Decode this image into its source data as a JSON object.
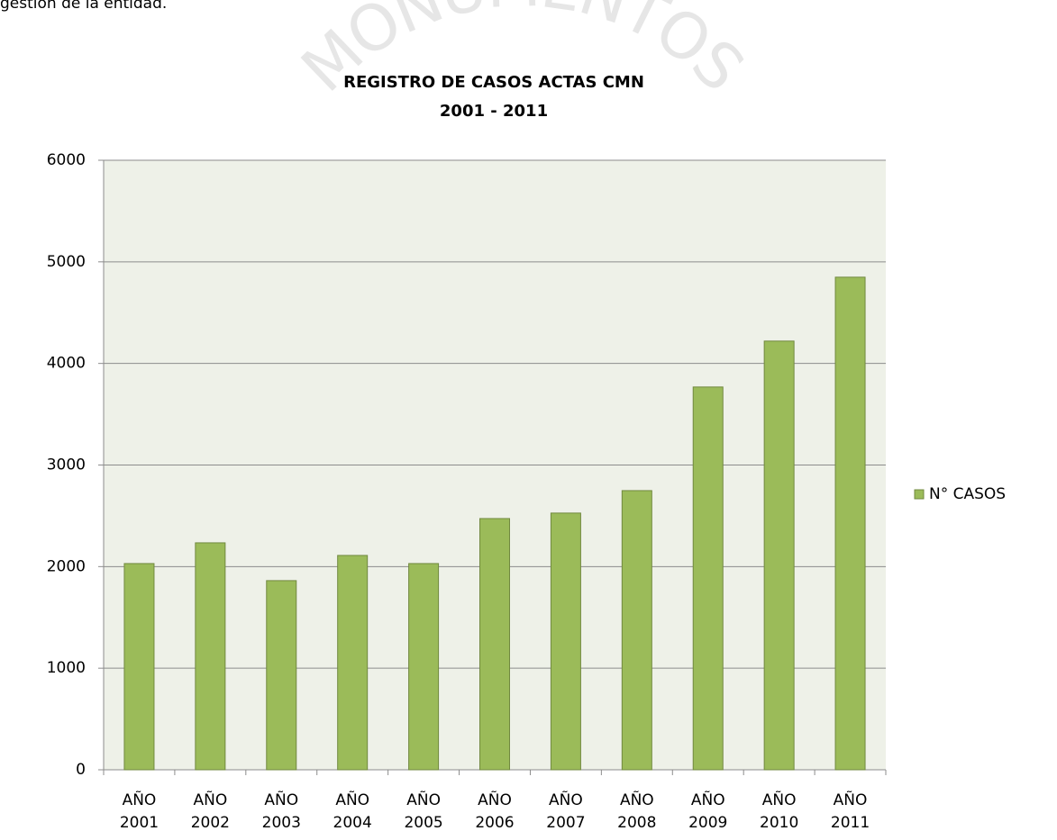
{
  "caption_text": "gestión de la entidad.",
  "watermark": "MONUMENTOS",
  "chart_data": {
    "type": "bar",
    "title": "REGISTRO DE CASOS ACTAS CMN",
    "subtitle": "2001 - 2011",
    "categories": [
      "AÑO 2001",
      "AÑO 2002",
      "AÑO 2003",
      "AÑO 2004",
      "AÑO 2005",
      "AÑO 2006",
      "AÑO 2007",
      "AÑO 2008",
      "AÑO 2009",
      "AÑO 2010",
      "AÑO 2011"
    ],
    "series": [
      {
        "name": "N° CASOS",
        "color": "#9bbb59",
        "values": [
          2030,
          2234,
          1862,
          2110,
          2030,
          2473,
          2527,
          2748,
          3768,
          4220,
          4849
        ]
      }
    ],
    "ylim": [
      0,
      6000
    ],
    "yticks": [
      0,
      1000,
      2000,
      3000,
      4000,
      5000,
      6000
    ],
    "grid": true,
    "legend": "right"
  }
}
